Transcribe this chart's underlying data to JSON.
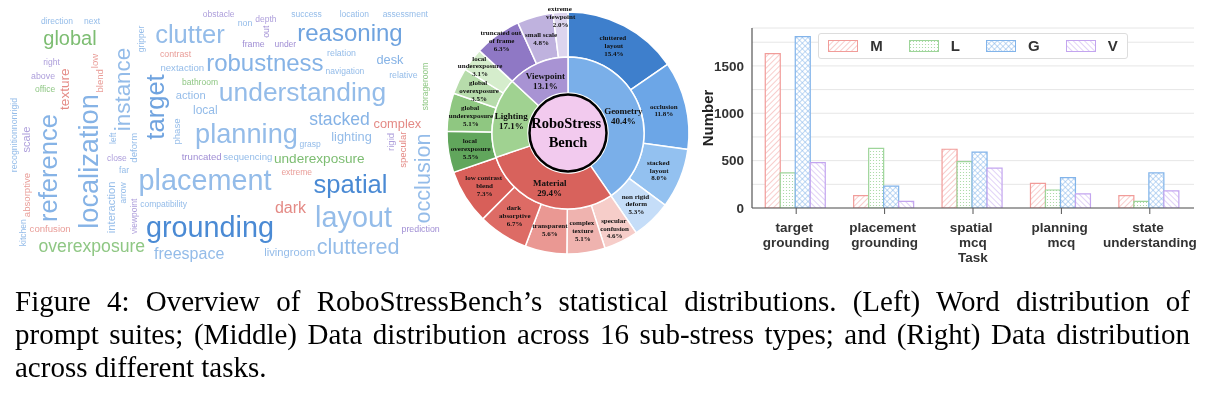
{
  "chart_data": [
    {
      "type": "other",
      "annotations": [
        "grounding",
        "placement",
        "reasoning",
        "robustness",
        "understanding",
        "planning",
        "spatial",
        "layout",
        "cluttered",
        "clutter",
        "stacked",
        "freespace",
        "overexposure",
        "underexposure",
        "global",
        "desk",
        "lighting",
        "complex",
        "sequencing",
        "livingroom",
        "dark",
        "prediction",
        "local",
        "relative",
        "relation",
        "success",
        "frame",
        "under",
        "depth",
        "bathroom",
        "navigation",
        "grasp",
        "extreme",
        "truncated",
        "nextaction",
        "action",
        "contrast",
        "right",
        "above",
        "office",
        "direction",
        "next",
        "obstacle",
        "non",
        "close",
        "far",
        "confusion",
        "compatibility",
        "location",
        "assessment",
        "localization",
        "reference",
        "instance",
        "target",
        "occlusion",
        "texture",
        "recognitionnonrigid",
        "scale",
        "absorptive",
        "viewpoint",
        "interaction",
        "arrow",
        "deform",
        "phase",
        "low",
        "blend",
        "left",
        "gripper",
        "kitchen",
        "out",
        "specular",
        "rigid",
        "storageroom"
      ]
    },
    {
      "type": "donut",
      "title": "RoboStress Bench",
      "categories": [
        "Geometry",
        "Material",
        "Lighting",
        "Viewpoint"
      ],
      "values": [
        40.4,
        29.4,
        17.1,
        13.1
      ],
      "colors": [
        "#7aafe9",
        "#d8625c",
        "#a0d291",
        "#a893d3"
      ],
      "value_labels": [
        "40.4%",
        "29.4%",
        "17.1%",
        "13.1%"
      ]
    },
    {
      "type": "donut",
      "categories": [
        "cluttered layout",
        "occlusion",
        "stacked layout",
        "non rigid deform",
        "specular confusion",
        "complex texture",
        "transparent",
        "dark absorptive",
        "low contrast blend",
        "local overexposure",
        "global underexposure",
        "global overexposure",
        "local underexposure",
        "truncated out of frame",
        "small scale",
        "extreme viewpoint"
      ],
      "values": [
        15.4,
        11.8,
        8.0,
        5.3,
        4.6,
        5.1,
        5.6,
        6.7,
        7.3,
        5.5,
        5.1,
        3.5,
        3.1,
        6.3,
        4.8,
        2.0
      ],
      "colors": [
        "#3e7fcc",
        "#6ca6e7",
        "#93c1f0",
        "#c5ddf8",
        "#f6cdc9",
        "#efb3af",
        "#ea9893",
        "#dd6b65",
        "#d85f59",
        "#61a65c",
        "#8fc781",
        "#b7dcab",
        "#d5edcc",
        "#8f78c5",
        "#bfb2de",
        "#ddd5ee"
      ],
      "value_labels": [
        "15.4%",
        "11.8%",
        "8.0%",
        "5.3%",
        "4.6%",
        "5.1%",
        "5.6%",
        "6.7%",
        "7.3%",
        "5.5%",
        "5.1%",
        "3.5%",
        "3.1%",
        "6.3%",
        "4.8%",
        "2.0%"
      ]
    },
    {
      "type": "bar",
      "xlabel": "Task",
      "ylabel": "Number",
      "categories": [
        "target grounding",
        "placement grounding",
        "spatial mcq",
        "planning mcq",
        "state understanding"
      ],
      "series": [
        {
          "name": "M",
          "color": "#f19c99",
          "values": [
            1630,
            130,
            620,
            260,
            130
          ]
        },
        {
          "name": "L",
          "color": "#9ed59a",
          "values": [
            370,
            630,
            490,
            190,
            70
          ]
        },
        {
          "name": "G",
          "color": "#82b4ea",
          "values": [
            1810,
            230,
            590,
            320,
            370
          ]
        },
        {
          "name": "V",
          "color": "#c3a5ef",
          "values": [
            480,
            70,
            420,
            150,
            180
          ]
        }
      ],
      "ylim": [
        0,
        1900
      ],
      "yticks": [
        0,
        {
          "value": 250,
          "label": null
        },
        500,
        {
          "value": 750,
          "label": null
        },
        1000,
        {
          "value": 1250,
          "label": null
        },
        1500,
        {
          "value": 1750,
          "label": null
        }
      ],
      "grid": "y",
      "legend": "top"
    },
    {
      "type": "other",
      "annotations": [
        "Figure 4: Overview of RoboStressBench’s statistical distributions. (Left) Word distribution of prompt suites; (Middle) Data distribution across 16 sub-stress types; and (Right) Data distribution across different tasks."
      ]
    }
  ]
}
